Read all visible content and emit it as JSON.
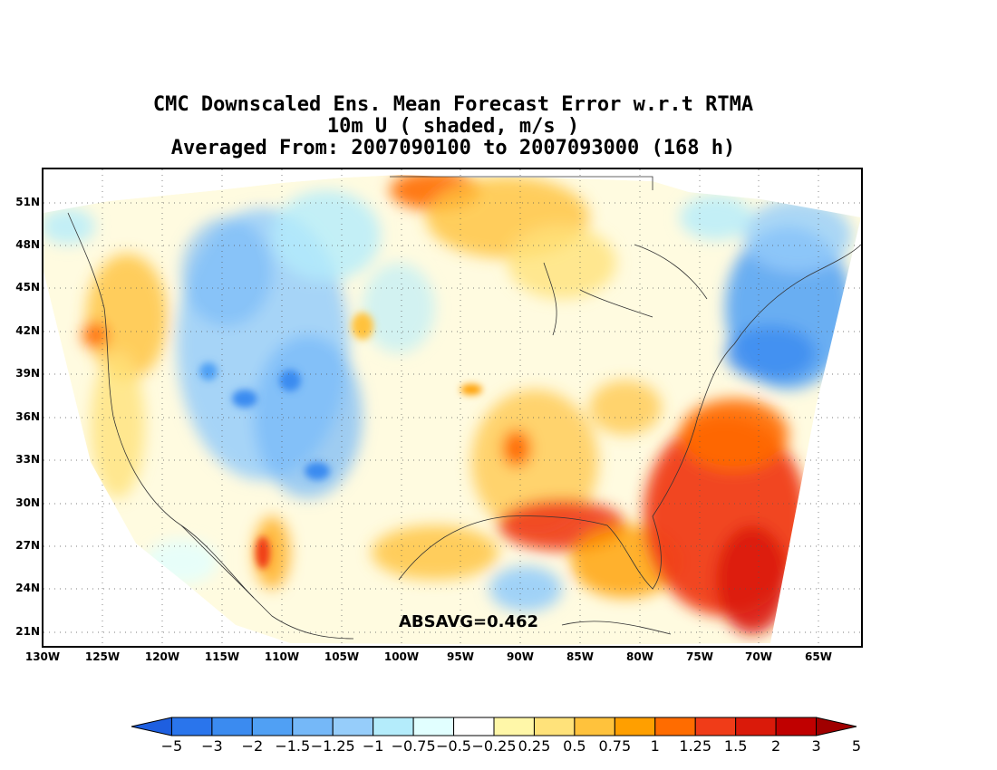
{
  "title": {
    "line1": "CMC Downscaled Ens. Mean Forecast Error w.r.t RTMA",
    "line2": "10m U ( shaded, m/s )",
    "line3": "Averaged From: 2007090100 to 2007093000 (168 h)"
  },
  "absavg": "ABSAVG=0.462",
  "axes": {
    "lat_labels": [
      "51N",
      "48N",
      "45N",
      "42N",
      "39N",
      "36N",
      "33N",
      "30N",
      "27N",
      "24N",
      "21N"
    ],
    "lon_labels": [
      "130W",
      "125W",
      "120W",
      "115W",
      "110W",
      "105W",
      "100W",
      "95W",
      "90W",
      "85W",
      "80W",
      "75W",
      "70W",
      "65W"
    ],
    "grid": "dotted"
  },
  "colorbar": {
    "colors": [
      "#1e5fe0",
      "#2a75ec",
      "#3b8bf0",
      "#50a0f4",
      "#75b8f8",
      "#96cdfa",
      "#b4ecfb",
      "#e1ffff",
      "#ffffff",
      "#fff7a8",
      "#ffe27a",
      "#ffc23c",
      "#ff9f00",
      "#ff6c00",
      "#f03c18",
      "#da1a0a",
      "#c00000",
      "#a00000"
    ],
    "labels": [
      "−5",
      "−3",
      "−2",
      "−1.5",
      "−1.25",
      "−1",
      "−0.75",
      "−0.5",
      "−0.25",
      "0.25",
      "0.5",
      "0.75",
      "1",
      "1.25",
      "1.5",
      "2",
      "3",
      "5"
    ]
  }
}
